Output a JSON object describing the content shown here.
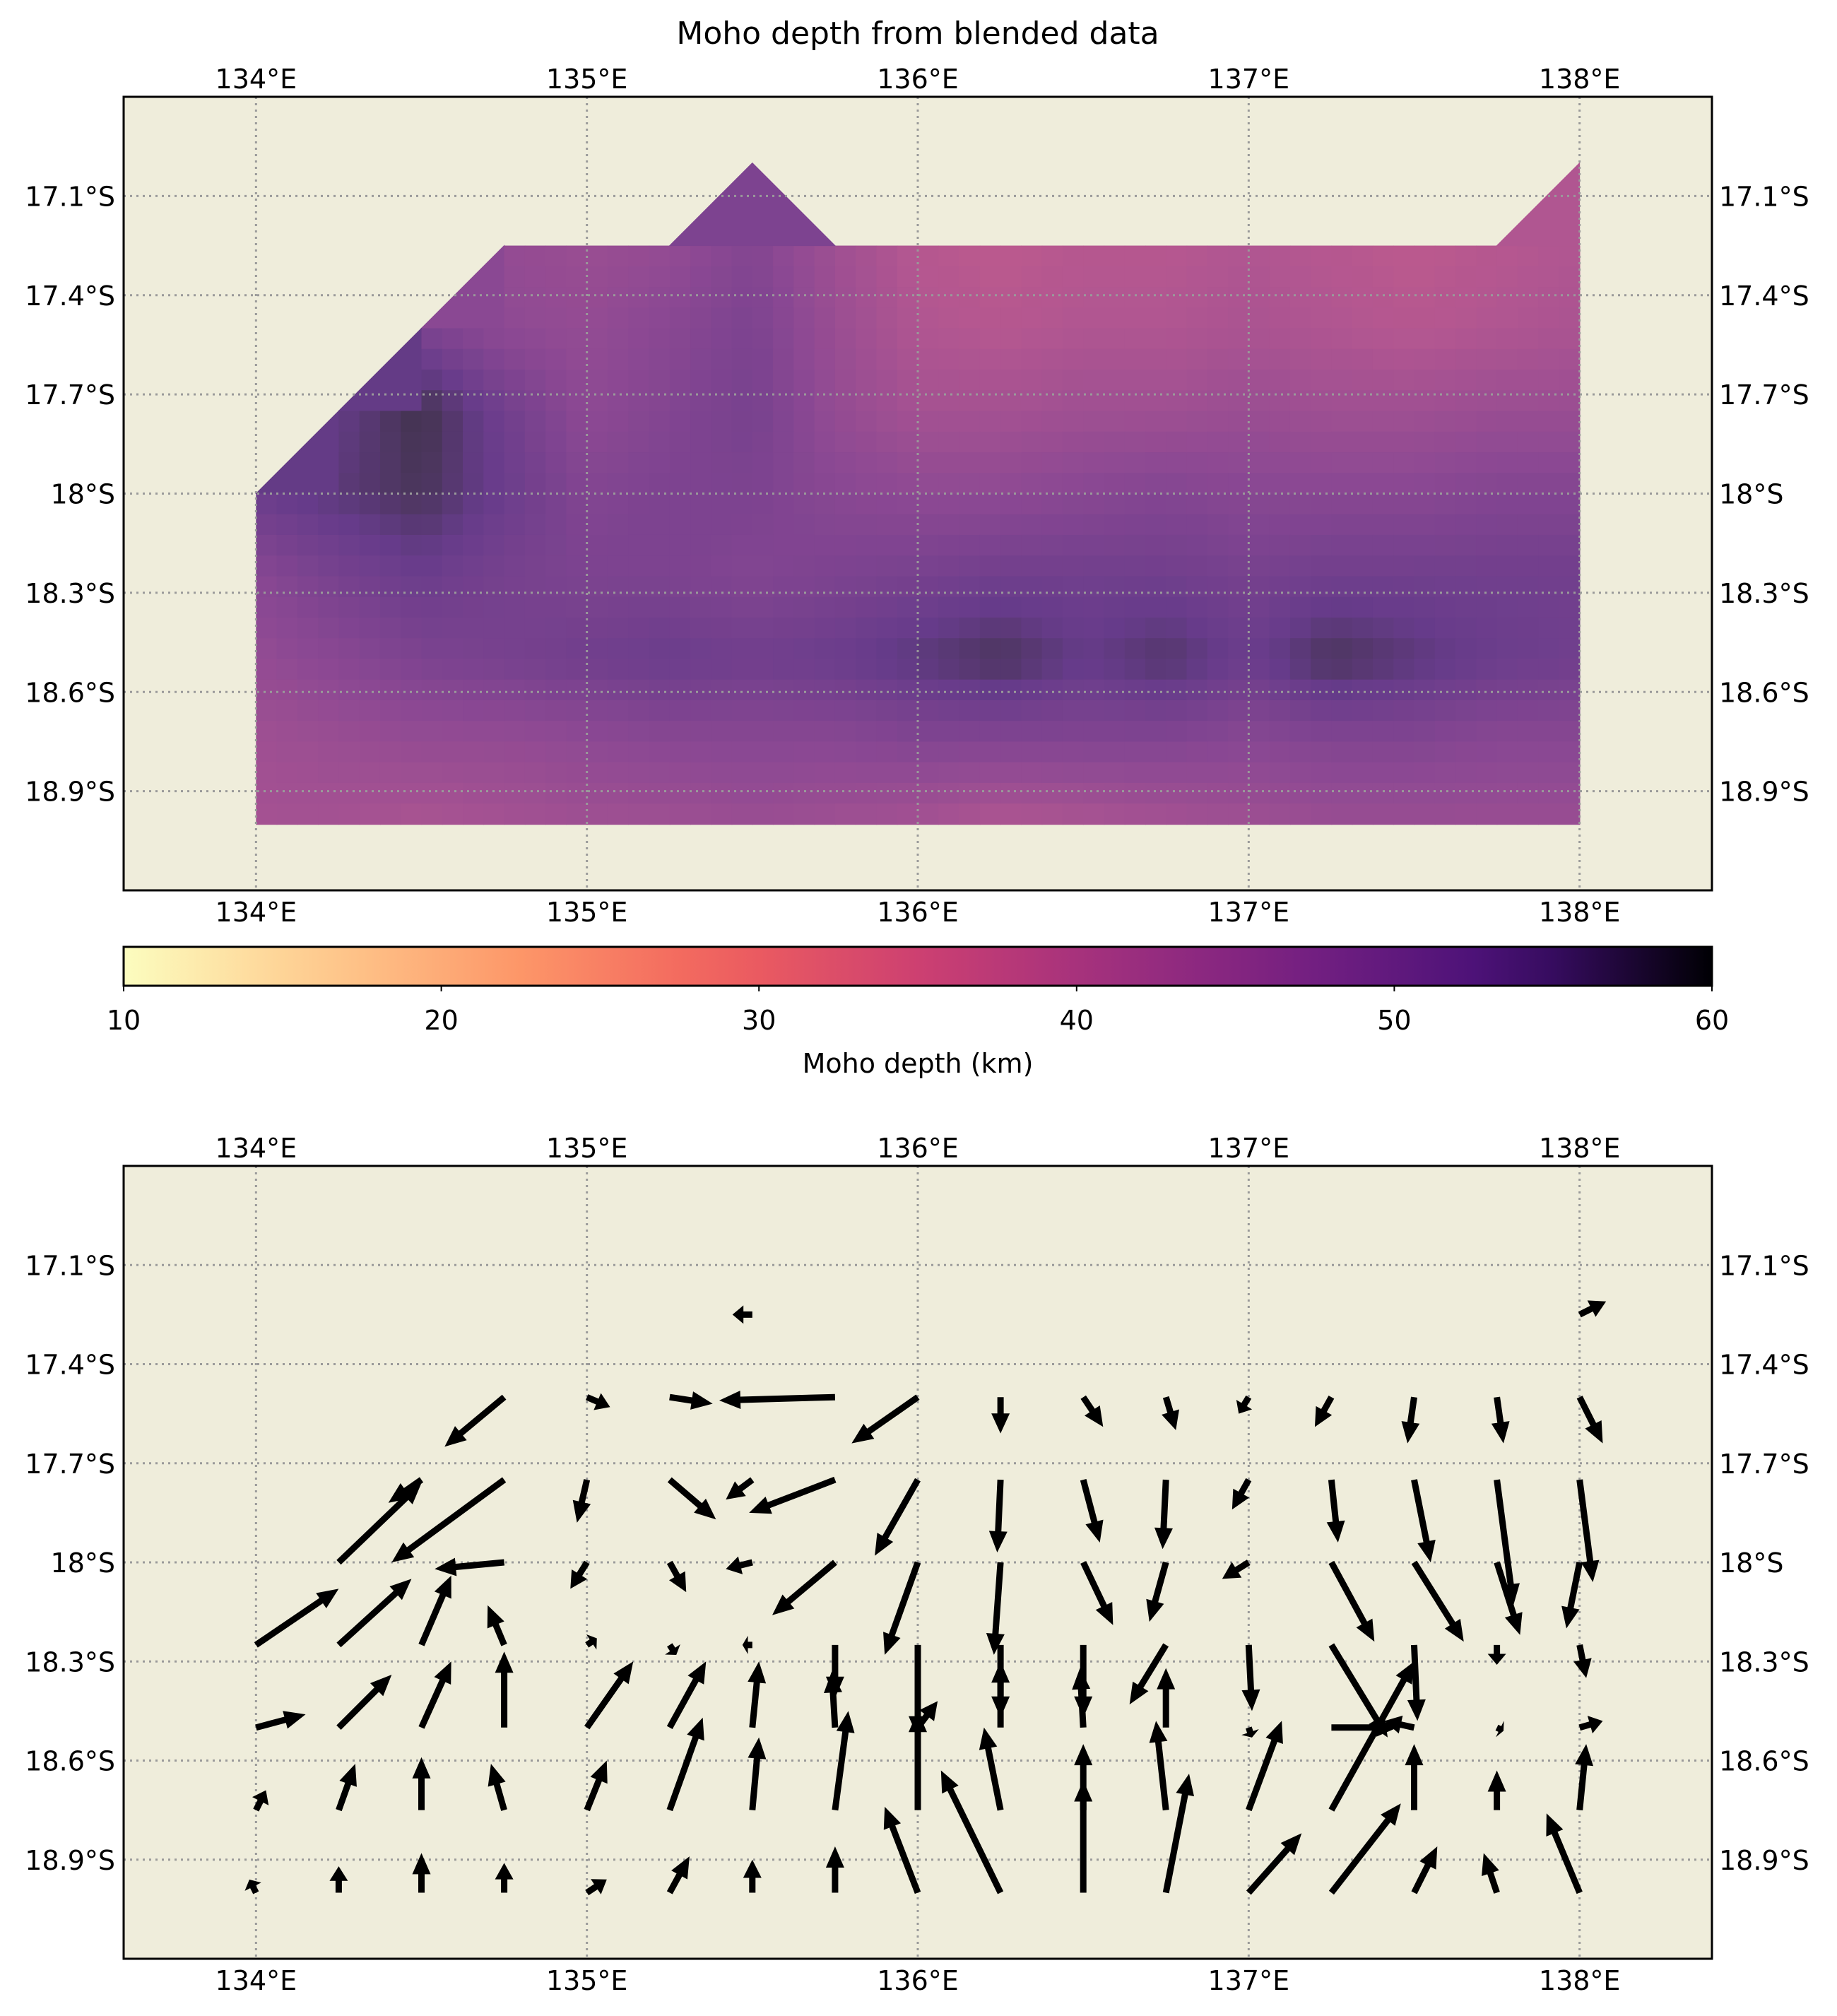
{
  "chart_data": [
    {
      "type": "heatmap",
      "title": "Moho depth from blended data",
      "xlabel": "",
      "ylabel": "",
      "xlim": [
        133.6,
        138.4
      ],
      "ylim": [
        -19.2,
        -16.8
      ],
      "x_ticks": [
        134,
        135,
        136,
        137,
        138
      ],
      "x_tick_labels": [
        "134°E",
        "135°E",
        "136°E",
        "137°E",
        "138°E"
      ],
      "y_ticks": [
        -17.1,
        -17.4,
        -17.7,
        -18.0,
        -18.3,
        -18.6,
        -18.9
      ],
      "y_tick_labels": [
        "17.1°S",
        "17.4°S",
        "17.7°S",
        "18°S",
        "18.3°S",
        "18.6°S",
        "18.9°S"
      ],
      "grid": true,
      "background": "#efeddb",
      "colormap": "magma_r",
      "colorbar": {
        "label": "Moho depth (km)",
        "min": 10,
        "max": 60,
        "ticks": [
          10,
          20,
          30,
          40,
          50,
          60
        ],
        "tick_labels": [
          "10",
          "20",
          "30",
          "40",
          "50",
          "60"
        ],
        "orientation": "horizontal"
      },
      "lons": [
        134.0,
        134.25,
        134.5,
        134.75,
        135.0,
        135.25,
        135.5,
        135.75,
        136.0,
        136.25,
        136.5,
        136.75,
        137.0,
        137.25,
        137.5,
        137.75,
        138.0
      ],
      "depth_rows": [
        {
          "lat": -17.25,
          "values": [
            null,
            null,
            null,
            46,
            45,
            46,
            49,
            44,
            40,
            39,
            40,
            40,
            41,
            40,
            39,
            40,
            41
          ]
        },
        {
          "lat": -17.5,
          "values": [
            null,
            null,
            50,
            47,
            46,
            48,
            50,
            45,
            41,
            40,
            41,
            41,
            42,
            41,
            40,
            41,
            42
          ]
        },
        {
          "lat": -17.75,
          "values": [
            null,
            54,
            58,
            52,
            47,
            49,
            51,
            46,
            43,
            43,
            44,
            44,
            45,
            44,
            44,
            45,
            45
          ]
        },
        {
          "lat": -18.0,
          "values": [
            53,
            55,
            57,
            53,
            49,
            50,
            50,
            48,
            47,
            47,
            48,
            49,
            48,
            48,
            48,
            49,
            49
          ]
        },
        {
          "lat": -18.25,
          "values": [
            48,
            51,
            53,
            51,
            50,
            50,
            49,
            50,
            51,
            52,
            52,
            52,
            51,
            52,
            52,
            52,
            52
          ]
        },
        {
          "lat": -18.5,
          "values": [
            46,
            48,
            50,
            51,
            52,
            53,
            52,
            53,
            55,
            57,
            54,
            56,
            53,
            57,
            55,
            53,
            52
          ]
        },
        {
          "lat": -18.75,
          "values": [
            44,
            45,
            46,
            46,
            47,
            48,
            48,
            48,
            49,
            49,
            49,
            49,
            48,
            49,
            49,
            48,
            48
          ]
        },
        {
          "lat": -19.0,
          "values": [
            43,
            43,
            42,
            43,
            44,
            44,
            45,
            44,
            43,
            41,
            42,
            43,
            44,
            45,
            45,
            45,
            45
          ]
        }
      ],
      "extra_points": [
        {
          "lon": 135.5,
          "lat": -17.0,
          "value": 50
        },
        {
          "lon": 138.0,
          "lat": -17.0,
          "value": 41
        }
      ]
    },
    {
      "type": "scatter",
      "subtype": "quiver",
      "title": "",
      "xlabel": "",
      "ylabel": "",
      "xlim": [
        133.6,
        138.4
      ],
      "ylim": [
        -19.2,
        -16.8
      ],
      "x_ticks": [
        134,
        135,
        136,
        137,
        138
      ],
      "x_tick_labels": [
        "134°E",
        "135°E",
        "136°E",
        "137°E",
        "138°E"
      ],
      "y_ticks": [
        -17.1,
        -17.4,
        -17.7,
        -18.0,
        -18.3,
        -18.6,
        -18.9
      ],
      "y_tick_labels": [
        "17.1°S",
        "17.4°S",
        "17.7°S",
        "18°S",
        "18.3°S",
        "18.6°S",
        "18.9°S"
      ],
      "grid": true,
      "background": "#efeddb",
      "arrow_color": "#000000",
      "vectors": [
        {
          "lon": 135.5,
          "lat": -17.25,
          "u": -0.06,
          "v": 0.0
        },
        {
          "lon": 138.0,
          "lat": -17.25,
          "u": 0.08,
          "v": 0.04
        },
        {
          "lon": 134.75,
          "lat": -17.5,
          "u": -0.18,
          "v": -0.15
        },
        {
          "lon": 135.0,
          "lat": -17.5,
          "u": 0.07,
          "v": -0.03
        },
        {
          "lon": 135.25,
          "lat": -17.5,
          "u": 0.13,
          "v": -0.02
        },
        {
          "lon": 135.75,
          "lat": -17.5,
          "u": -0.35,
          "v": -0.01
        },
        {
          "lon": 136.0,
          "lat": -17.5,
          "u": -0.2,
          "v": -0.14
        },
        {
          "lon": 136.25,
          "lat": -17.5,
          "u": 0.0,
          "v": -0.11
        },
        {
          "lon": 136.5,
          "lat": -17.5,
          "u": 0.06,
          "v": -0.09
        },
        {
          "lon": 136.75,
          "lat": -17.5,
          "u": 0.03,
          "v": -0.1
        },
        {
          "lon": 137.0,
          "lat": -17.5,
          "u": -0.03,
          "v": -0.05
        },
        {
          "lon": 137.25,
          "lat": -17.5,
          "u": -0.05,
          "v": -0.09
        },
        {
          "lon": 137.5,
          "lat": -17.5,
          "u": -0.02,
          "v": -0.14
        },
        {
          "lon": 137.75,
          "lat": -17.5,
          "u": 0.02,
          "v": -0.14
        },
        {
          "lon": 138.0,
          "lat": -17.5,
          "u": 0.07,
          "v": -0.14
        },
        {
          "lon": 134.5,
          "lat": -17.75,
          "u": -0.1,
          "v": -0.07
        },
        {
          "lon": 134.75,
          "lat": -17.75,
          "u": -0.34,
          "v": -0.25
        },
        {
          "lon": 135.0,
          "lat": -17.75,
          "u": -0.03,
          "v": -0.13
        },
        {
          "lon": 135.25,
          "lat": -17.75,
          "u": 0.14,
          "v": -0.12
        },
        {
          "lon": 135.5,
          "lat": -17.75,
          "u": -0.08,
          "v": -0.06
        },
        {
          "lon": 135.75,
          "lat": -17.75,
          "u": -0.26,
          "v": -0.1
        },
        {
          "lon": 136.0,
          "lat": -17.75,
          "u": -0.13,
          "v": -0.23
        },
        {
          "lon": 136.25,
          "lat": -17.75,
          "u": -0.01,
          "v": -0.22
        },
        {
          "lon": 136.5,
          "lat": -17.75,
          "u": 0.05,
          "v": -0.19
        },
        {
          "lon": 136.75,
          "lat": -17.75,
          "u": -0.01,
          "v": -0.21
        },
        {
          "lon": 137.0,
          "lat": -17.75,
          "u": -0.05,
          "v": -0.09
        },
        {
          "lon": 137.25,
          "lat": -17.75,
          "u": 0.02,
          "v": -0.19
        },
        {
          "lon": 137.5,
          "lat": -17.75,
          "u": 0.05,
          "v": -0.25
        },
        {
          "lon": 137.75,
          "lat": -17.75,
          "u": 0.05,
          "v": -0.38
        },
        {
          "lon": 138.0,
          "lat": -17.75,
          "u": 0.04,
          "v": -0.31
        },
        {
          "lon": 134.25,
          "lat": -18.0,
          "u": 0.25,
          "v": 0.24
        },
        {
          "lon": 134.75,
          "lat": -18.0,
          "u": -0.21,
          "v": -0.02
        },
        {
          "lon": 135.0,
          "lat": -18.0,
          "u": -0.05,
          "v": -0.08
        },
        {
          "lon": 135.25,
          "lat": -18.0,
          "u": 0.05,
          "v": -0.09
        },
        {
          "lon": 135.5,
          "lat": -18.0,
          "u": -0.08,
          "v": -0.02
        },
        {
          "lon": 135.75,
          "lat": -18.0,
          "u": -0.19,
          "v": -0.16
        },
        {
          "lon": 136.0,
          "lat": -18.0,
          "u": -0.1,
          "v": -0.28
        },
        {
          "lon": 136.25,
          "lat": -18.0,
          "u": -0.02,
          "v": -0.28
        },
        {
          "lon": 136.5,
          "lat": -18.0,
          "u": 0.09,
          "v": -0.19
        },
        {
          "lon": 136.75,
          "lat": -18.0,
          "u": -0.05,
          "v": -0.18
        },
        {
          "lon": 137.0,
          "lat": -18.0,
          "u": -0.08,
          "v": -0.05
        },
        {
          "lon": 137.25,
          "lat": -18.0,
          "u": 0.13,
          "v": -0.24
        },
        {
          "lon": 137.5,
          "lat": -18.0,
          "u": 0.15,
          "v": -0.24
        },
        {
          "lon": 137.75,
          "lat": -18.0,
          "u": 0.07,
          "v": -0.22
        },
        {
          "lon": 138.0,
          "lat": -18.0,
          "u": -0.04,
          "v": -0.2
        },
        {
          "lon": 134.0,
          "lat": -18.25,
          "u": 0.25,
          "v": 0.17
        },
        {
          "lon": 134.25,
          "lat": -18.25,
          "u": 0.22,
          "v": 0.2
        },
        {
          "lon": 134.5,
          "lat": -18.25,
          "u": 0.09,
          "v": 0.21
        },
        {
          "lon": 134.75,
          "lat": -18.25,
          "u": -0.05,
          "v": 0.12
        },
        {
          "lon": 135.0,
          "lat": -18.25,
          "u": 0.03,
          "v": 0.02
        },
        {
          "lon": 135.25,
          "lat": -18.25,
          "u": 0.02,
          "v": -0.03
        },
        {
          "lon": 135.5,
          "lat": -18.25,
          "u": -0.03,
          "v": 0.0
        },
        {
          "lon": 135.75,
          "lat": -18.25,
          "u": 0.0,
          "v": -0.16
        },
        {
          "lon": 136.0,
          "lat": -18.25,
          "u": 0.0,
          "v": -0.28
        },
        {
          "lon": 136.25,
          "lat": -18.25,
          "u": 0.0,
          "v": -0.22
        },
        {
          "lon": 136.5,
          "lat": -18.25,
          "u": 0.0,
          "v": -0.22
        },
        {
          "lon": 136.75,
          "lat": -18.25,
          "u": -0.11,
          "v": -0.18
        },
        {
          "lon": 137.0,
          "lat": -18.25,
          "u": 0.01,
          "v": -0.2
        },
        {
          "lon": 137.25,
          "lat": -18.25,
          "u": 0.17,
          "v": -0.28
        },
        {
          "lon": 137.5,
          "lat": -18.25,
          "u": 0.01,
          "v": -0.23
        },
        {
          "lon": 137.75,
          "lat": -18.25,
          "u": 0.0,
          "v": -0.06
        },
        {
          "lon": 138.0,
          "lat": -18.25,
          "u": 0.02,
          "v": -0.1
        },
        {
          "lon": 134.0,
          "lat": -18.5,
          "u": 0.15,
          "v": 0.04
        },
        {
          "lon": 134.25,
          "lat": -18.5,
          "u": 0.16,
          "v": 0.16
        },
        {
          "lon": 134.5,
          "lat": -18.5,
          "u": 0.09,
          "v": 0.2
        },
        {
          "lon": 134.75,
          "lat": -18.5,
          "u": 0.0,
          "v": 0.23
        },
        {
          "lon": 135.0,
          "lat": -18.5,
          "u": 0.14,
          "v": 0.2
        },
        {
          "lon": 135.25,
          "lat": -18.5,
          "u": 0.11,
          "v": 0.2
        },
        {
          "lon": 135.5,
          "lat": -18.5,
          "u": 0.02,
          "v": 0.2
        },
        {
          "lon": 135.75,
          "lat": -18.5,
          "u": -0.01,
          "v": 0.17
        },
        {
          "lon": 136.0,
          "lat": -18.5,
          "u": 0.06,
          "v": 0.08
        },
        {
          "lon": 136.25,
          "lat": -18.5,
          "u": 0.0,
          "v": 0.2
        },
        {
          "lon": 136.5,
          "lat": -18.5,
          "u": -0.01,
          "v": 0.18
        },
        {
          "lon": 136.75,
          "lat": -18.5,
          "u": 0.0,
          "v": 0.18
        },
        {
          "lon": 137.0,
          "lat": -18.5,
          "u": 0.01,
          "v": -0.03
        },
        {
          "lon": 137.25,
          "lat": -18.5,
          "u": 0.2,
          "v": 0.0
        },
        {
          "lon": 137.5,
          "lat": -18.5,
          "u": -0.09,
          "v": 0.02
        },
        {
          "lon": 137.75,
          "lat": -18.5,
          "u": 0.02,
          "v": -0.01
        },
        {
          "lon": 138.0,
          "lat": -18.5,
          "u": 0.07,
          "v": 0.02
        },
        {
          "lon": 134.0,
          "lat": -18.75,
          "u": 0.03,
          "v": 0.06
        },
        {
          "lon": 134.25,
          "lat": -18.75,
          "u": 0.05,
          "v": 0.14
        },
        {
          "lon": 134.5,
          "lat": -18.75,
          "u": 0.0,
          "v": 0.16
        },
        {
          "lon": 134.75,
          "lat": -18.75,
          "u": -0.04,
          "v": 0.14
        },
        {
          "lon": 135.0,
          "lat": -18.75,
          "u": 0.06,
          "v": 0.15
        },
        {
          "lon": 135.25,
          "lat": -18.75,
          "u": 0.1,
          "v": 0.28
        },
        {
          "lon": 135.5,
          "lat": -18.75,
          "u": 0.02,
          "v": 0.22
        },
        {
          "lon": 135.75,
          "lat": -18.75,
          "u": 0.04,
          "v": 0.3
        },
        {
          "lon": 136.0,
          "lat": -18.75,
          "u": 0.0,
          "v": 0.3
        },
        {
          "lon": 136.25,
          "lat": -18.75,
          "u": -0.05,
          "v": 0.25
        },
        {
          "lon": 136.5,
          "lat": -18.75,
          "u": 0.0,
          "v": 0.2
        },
        {
          "lon": 136.75,
          "lat": -18.75,
          "u": -0.03,
          "v": 0.27
        },
        {
          "lon": 137.0,
          "lat": -18.75,
          "u": 0.1,
          "v": 0.27
        },
        {
          "lon": 137.25,
          "lat": -18.75,
          "u": 0.25,
          "v": 0.45
        },
        {
          "lon": 137.5,
          "lat": -18.75,
          "u": 0.0,
          "v": 0.2
        },
        {
          "lon": 137.75,
          "lat": -18.75,
          "u": 0.0,
          "v": 0.12
        },
        {
          "lon": 138.0,
          "lat": -18.75,
          "u": 0.02,
          "v": 0.2
        },
        {
          "lon": 134.0,
          "lat": -19.0,
          "u": -0.02,
          "v": 0.04
        },
        {
          "lon": 134.25,
          "lat": -19.0,
          "u": 0.0,
          "v": 0.08
        },
        {
          "lon": 134.5,
          "lat": -19.0,
          "u": 0.0,
          "v": 0.12
        },
        {
          "lon": 134.75,
          "lat": -19.0,
          "u": 0.0,
          "v": 0.09
        },
        {
          "lon": 135.0,
          "lat": -19.0,
          "u": 0.06,
          "v": 0.04
        },
        {
          "lon": 135.25,
          "lat": -19.0,
          "u": 0.06,
          "v": 0.11
        },
        {
          "lon": 135.5,
          "lat": -19.0,
          "u": 0.0,
          "v": 0.1
        },
        {
          "lon": 135.75,
          "lat": -19.0,
          "u": 0.0,
          "v": 0.14
        },
        {
          "lon": 136.0,
          "lat": -19.0,
          "u": -0.1,
          "v": 0.26
        },
        {
          "lon": 136.25,
          "lat": -19.0,
          "u": -0.18,
          "v": 0.37
        },
        {
          "lon": 136.5,
          "lat": -19.0,
          "u": 0.0,
          "v": 0.34
        },
        {
          "lon": 136.75,
          "lat": -19.0,
          "u": 0.07,
          "v": 0.36
        },
        {
          "lon": 137.0,
          "lat": -19.0,
          "u": 0.16,
          "v": 0.18
        },
        {
          "lon": 137.25,
          "lat": -19.0,
          "u": 0.21,
          "v": 0.27
        },
        {
          "lon": 137.5,
          "lat": -19.0,
          "u": 0.07,
          "v": 0.14
        },
        {
          "lon": 137.75,
          "lat": -19.0,
          "u": -0.04,
          "v": 0.12
        },
        {
          "lon": 138.0,
          "lat": -19.0,
          "u": -0.1,
          "v": 0.24
        }
      ]
    }
  ]
}
